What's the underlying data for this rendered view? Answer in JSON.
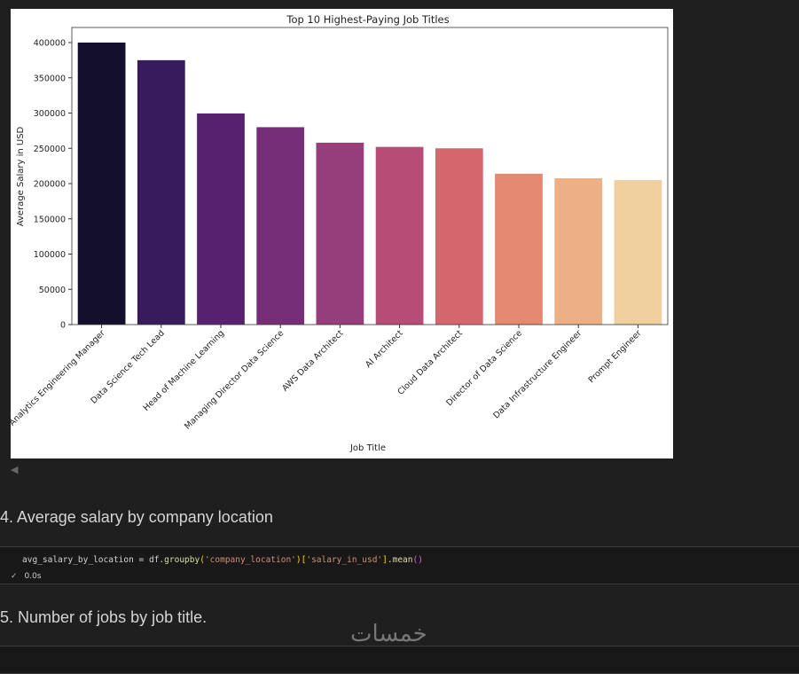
{
  "chart_data": {
    "type": "bar",
    "title": "Top 10 Highest-Paying Job Titles",
    "xlabel": "Job Title",
    "ylabel": "Average Salary in USD",
    "ylim": [
      0,
      420000
    ],
    "yticks": [
      0,
      50000,
      100000,
      150000,
      200000,
      250000,
      300000,
      350000,
      400000
    ],
    "categories": [
      "Analytics Engineering Manager",
      "Data Science Tech Lead",
      "Head of Machine Learning",
      "Managing Director Data Science",
      "AWS Data Architect",
      "AI Architect",
      "Cloud Data Architect",
      "Director of Data Science",
      "Data Infrastructure Engineer",
      "Prompt Engineer"
    ],
    "values": [
      400000,
      375000,
      299500,
      280000,
      258000,
      252000,
      250000,
      214000,
      207500,
      205000
    ],
    "colors": [
      "#150f2e",
      "#371b5c",
      "#57216f",
      "#752e77",
      "#963e7b",
      "#b74d77",
      "#d5666e",
      "#e48a71",
      "#edaf86",
      "#f1d0a0"
    ]
  },
  "cells": {
    "heading4": "4. Average salary by company location",
    "code4": {
      "var": "avg_salary_by_location = df.",
      "fn1": "groupby",
      "s1": "'company_location'",
      "s2": "'salary_in_usd'",
      "fn2": "mean"
    },
    "status4": {
      "check": "✓",
      "time": "0.0s"
    },
    "heading5": "5. Number of jobs by job title."
  },
  "watermark": "خمسات"
}
